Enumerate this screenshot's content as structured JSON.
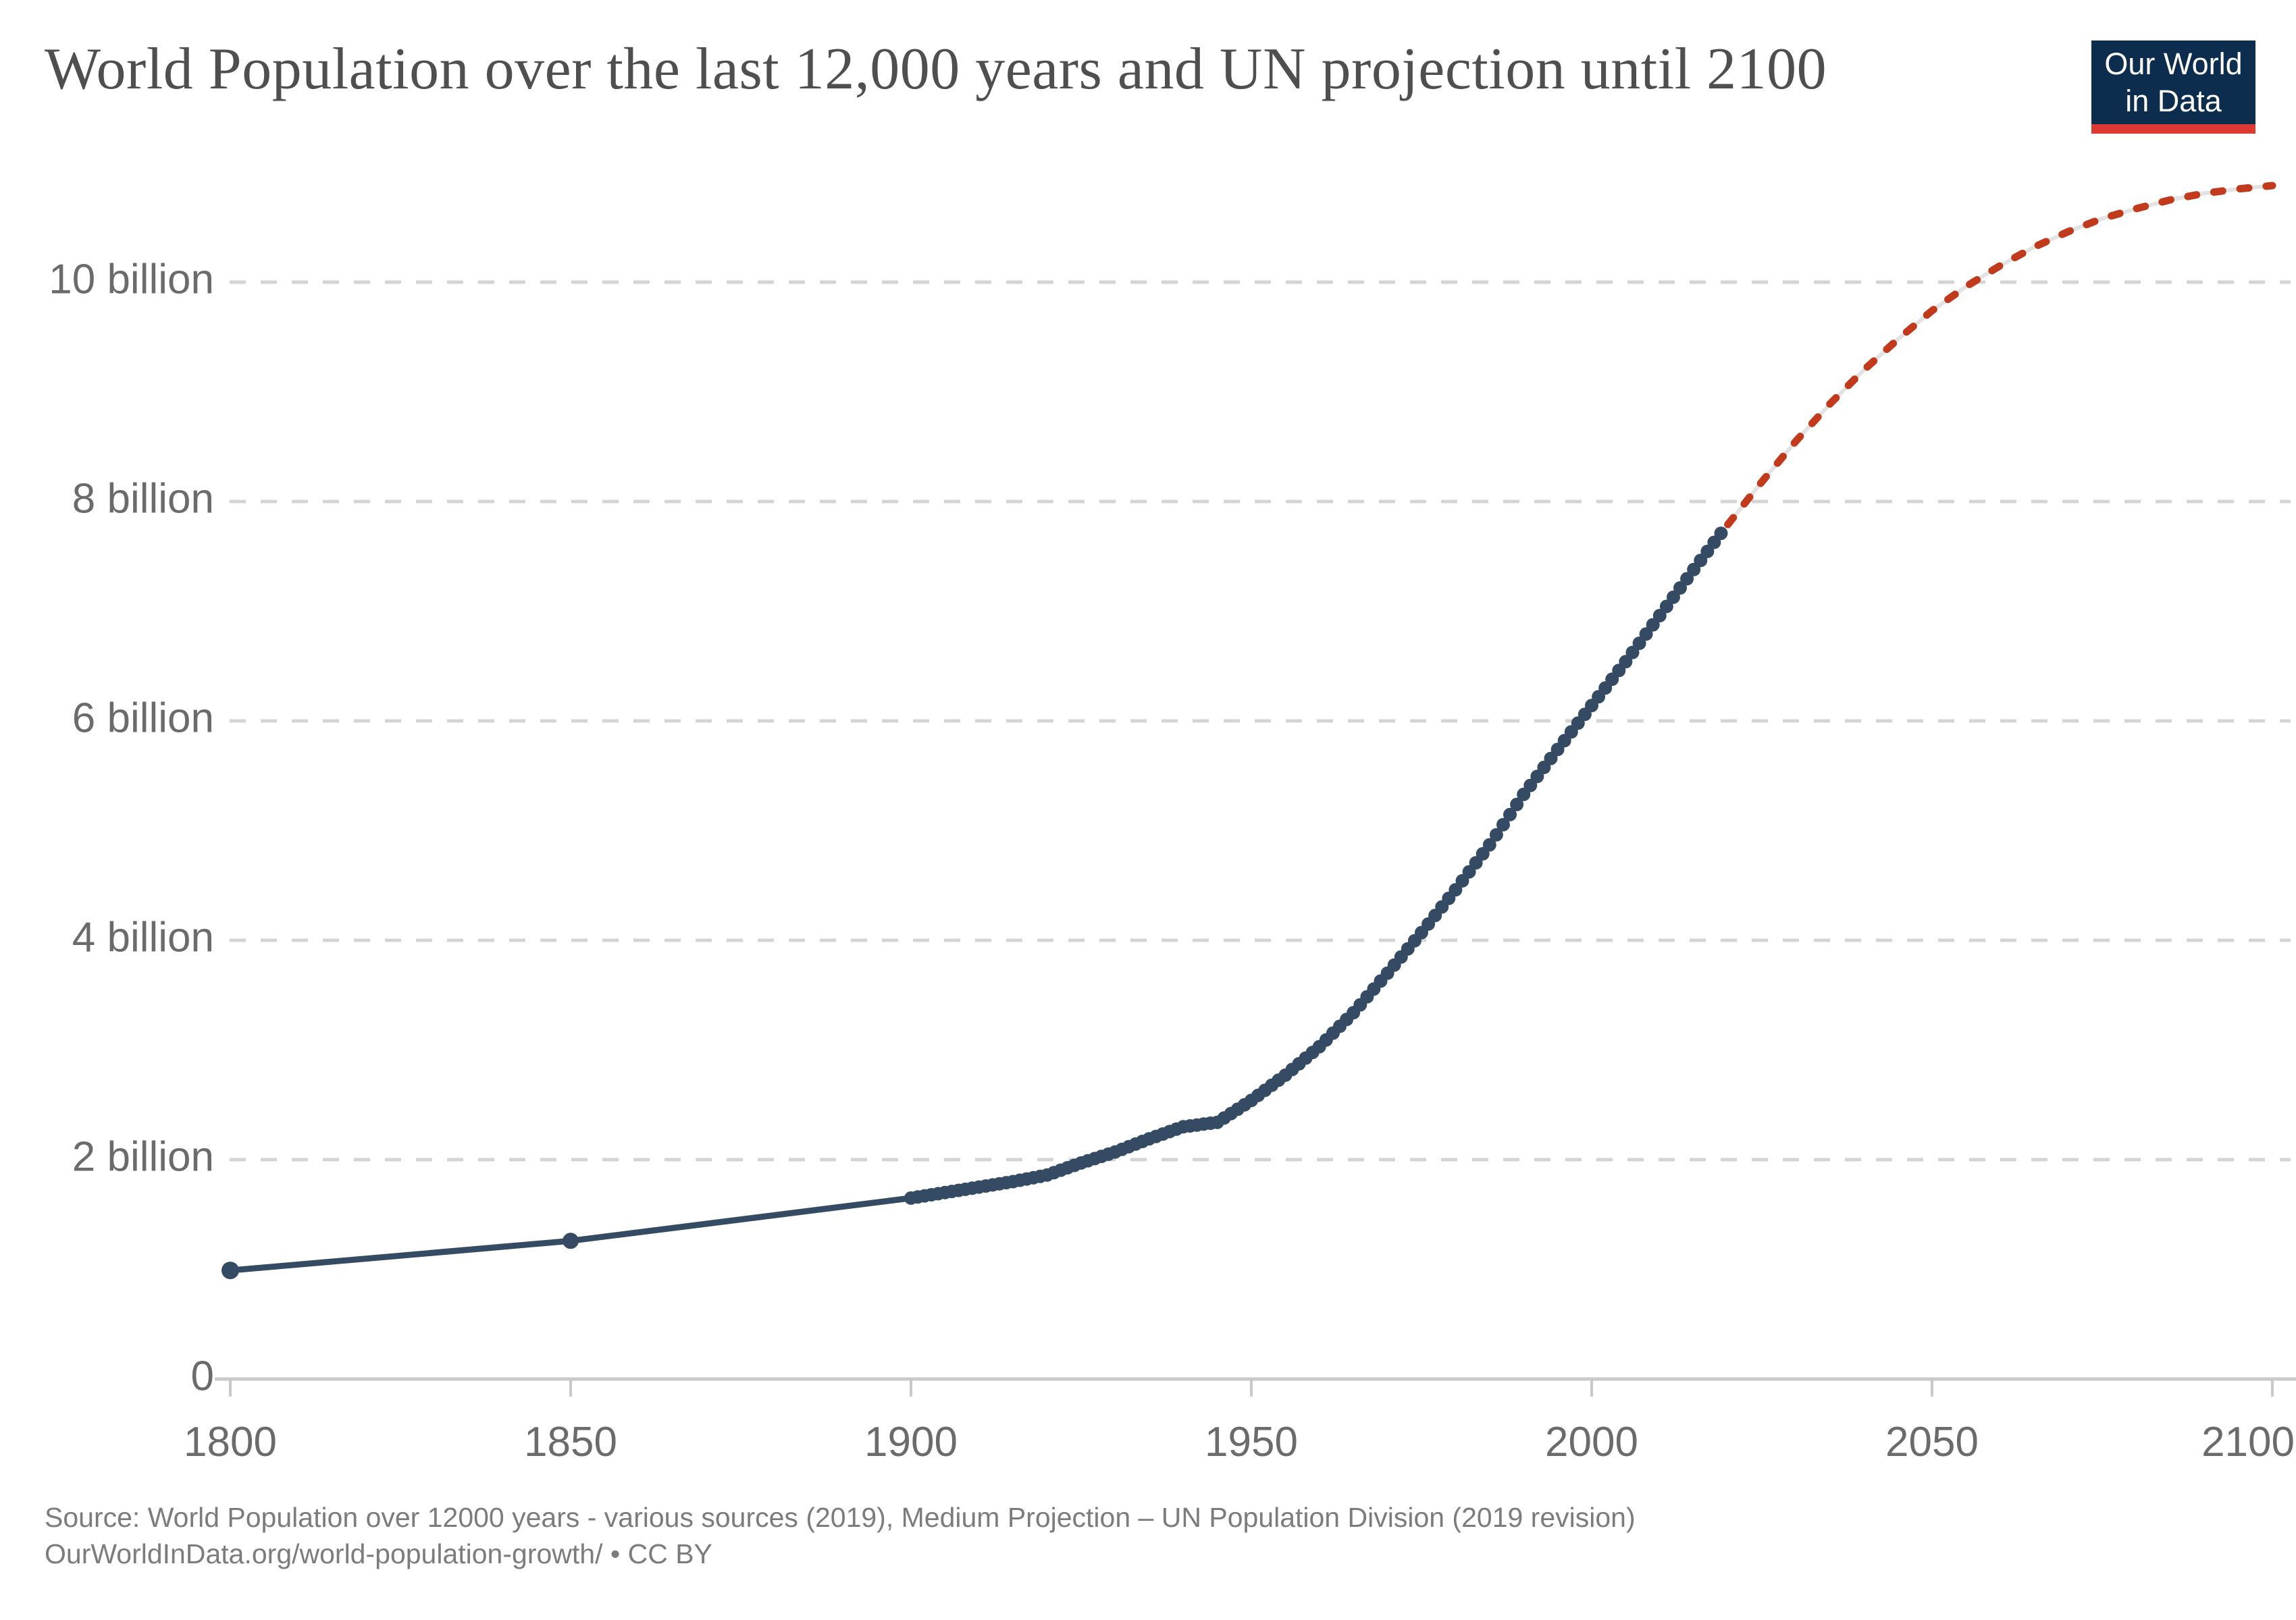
{
  "header": {
    "title": "World Population over the last 12,000 years and UN projection until 2100",
    "logo": {
      "line1": "Our World",
      "line2": "in Data",
      "bg_color": "#0d2d4e",
      "bar_color": "#dc3a31"
    }
  },
  "source": {
    "line1": "Source: World Population over 12000 years - various sources (2019), Medium Projection – UN Population Division (2019 revision)",
    "line2": "OurWorldInData.org/world-population-growth/ • CC BY"
  },
  "colors": {
    "historical_series": "#344b63",
    "projection_series": "#c13a1b",
    "projection_underlay": "#e3e3e3",
    "gridline": "#d4d4d4",
    "axis_line": "#c9c9c9",
    "tick_label_text": "#6b6b6b",
    "title_text": "#4f4f4f",
    "source_text": "#7c7c7c"
  },
  "chart_data": {
    "type": "line",
    "title": "World Population over the last 12,000 years and UN projection until 2100",
    "xlabel": "",
    "ylabel": "",
    "x_axis": {
      "range": [
        1800,
        2100
      ],
      "ticks": [
        1800,
        1850,
        1900,
        1950,
        2000,
        2050,
        2100
      ]
    },
    "y_axis": {
      "unit": "billions of people",
      "range": [
        0,
        11.6
      ],
      "ticks": [
        {
          "value": 0,
          "label": "0"
        },
        {
          "value": 2,
          "label": "2 billion"
        },
        {
          "value": 4,
          "label": "4 billion"
        },
        {
          "value": 6,
          "label": "6 billion"
        },
        {
          "value": 8,
          "label": "8 billion"
        },
        {
          "value": 10,
          "label": "10 billion"
        }
      ],
      "gridlines": "dashed"
    },
    "legend_position": "none",
    "series": [
      {
        "name": "World population (historical estimates)",
        "style": "solid_line_with_dots",
        "color_key": "historical_series",
        "dot_years_note": "dots at 1800, 1850, then every year 1900-2019",
        "points": [
          [
            1800,
            0.99
          ],
          [
            1850,
            1.26
          ],
          [
            1900,
            1.65
          ],
          [
            1905,
            1.7
          ],
          [
            1910,
            1.75
          ],
          [
            1915,
            1.8
          ],
          [
            1920,
            1.86
          ],
          [
            1925,
            1.97
          ],
          [
            1930,
            2.07
          ],
          [
            1935,
            2.19
          ],
          [
            1940,
            2.3
          ],
          [
            1945,
            2.34
          ],
          [
            1950,
            2.54
          ],
          [
            1955,
            2.77
          ],
          [
            1960,
            3.03
          ],
          [
            1965,
            3.34
          ],
          [
            1970,
            3.7
          ],
          [
            1975,
            4.07
          ],
          [
            1980,
            4.46
          ],
          [
            1985,
            4.87
          ],
          [
            1990,
            5.33
          ],
          [
            1995,
            5.74
          ],
          [
            2000,
            6.14
          ],
          [
            2005,
            6.54
          ],
          [
            2010,
            6.96
          ],
          [
            2015,
            7.38
          ],
          [
            2019,
            7.71
          ]
        ]
      },
      {
        "name": "UN medium projection (2019 revision)",
        "style": "dashed_line",
        "color_key": "projection_series",
        "points": [
          [
            2020,
            7.79
          ],
          [
            2025,
            8.18
          ],
          [
            2030,
            8.55
          ],
          [
            2035,
            8.89
          ],
          [
            2040,
            9.2
          ],
          [
            2045,
            9.48
          ],
          [
            2050,
            9.74
          ],
          [
            2055,
            9.96
          ],
          [
            2060,
            10.15
          ],
          [
            2065,
            10.32
          ],
          [
            2070,
            10.46
          ],
          [
            2075,
            10.58
          ],
          [
            2080,
            10.67
          ],
          [
            2085,
            10.75
          ],
          [
            2090,
            10.81
          ],
          [
            2095,
            10.85
          ],
          [
            2100,
            10.88
          ]
        ]
      }
    ]
  }
}
